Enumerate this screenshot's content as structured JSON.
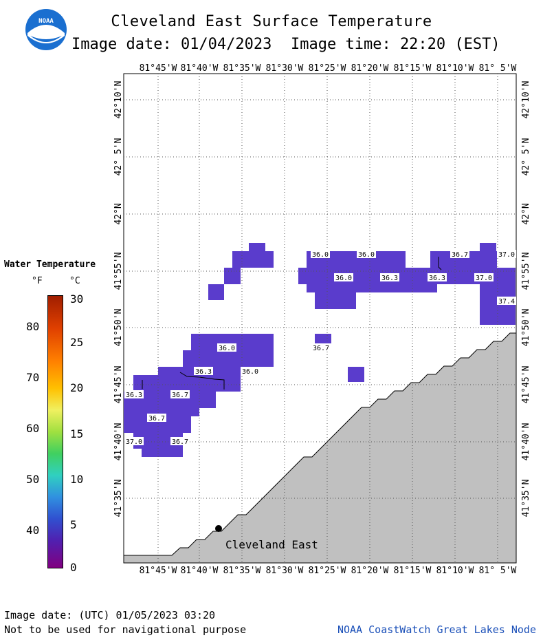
{
  "header": {
    "title": "Cleveland East Surface Temperature",
    "date_label": "Image date: 01/04/2023",
    "time_label": "Image time: 22:20 (EST)",
    "logo_text": "NOAA"
  },
  "legend": {
    "title": "Water Temperature",
    "unit_f": "°F",
    "unit_c": "°C",
    "f_ticks": [
      "80",
      "70",
      "60",
      "50",
      "40"
    ],
    "c_ticks": [
      "30",
      "25",
      "20",
      "15",
      "10",
      "5",
      "0"
    ],
    "colors": {
      "warm": "#a01e00",
      "cold": "#800080",
      "water_temp_36": "#5a3ccc",
      "land": "#c0c0c0"
    }
  },
  "map": {
    "lon_labels": [
      "81°45'W",
      "81°40'W",
      "81°35'W",
      "81°30'W",
      "81°25'W",
      "81°20'W",
      "81°15'W",
      "81°10'W",
      "81° 5'W"
    ],
    "lat_labels": [
      "42°10'N",
      "42° 5'N",
      "42°N",
      "41°55'N",
      "41°50'N",
      "41°45'N",
      "41°40'N",
      "41°35'N"
    ],
    "location_label": "Cleveland East",
    "temperature_labels": [
      "36.0",
      "36.0",
      "36.7",
      "37.0",
      "36.0",
      "36.3",
      "36.3",
      "37.0",
      "37.4",
      "36.0",
      "36.7",
      "36.3",
      "36.0",
      "36.3",
      "36.7",
      "36.7",
      "37.0",
      "36.7"
    ]
  },
  "footer": {
    "utc_date": "Image date: (UTC) 01/05/2023  03:20",
    "disclaimer": "Not to be used for navigational purpose",
    "credit": "NOAA CoastWatch Great Lakes Node"
  }
}
